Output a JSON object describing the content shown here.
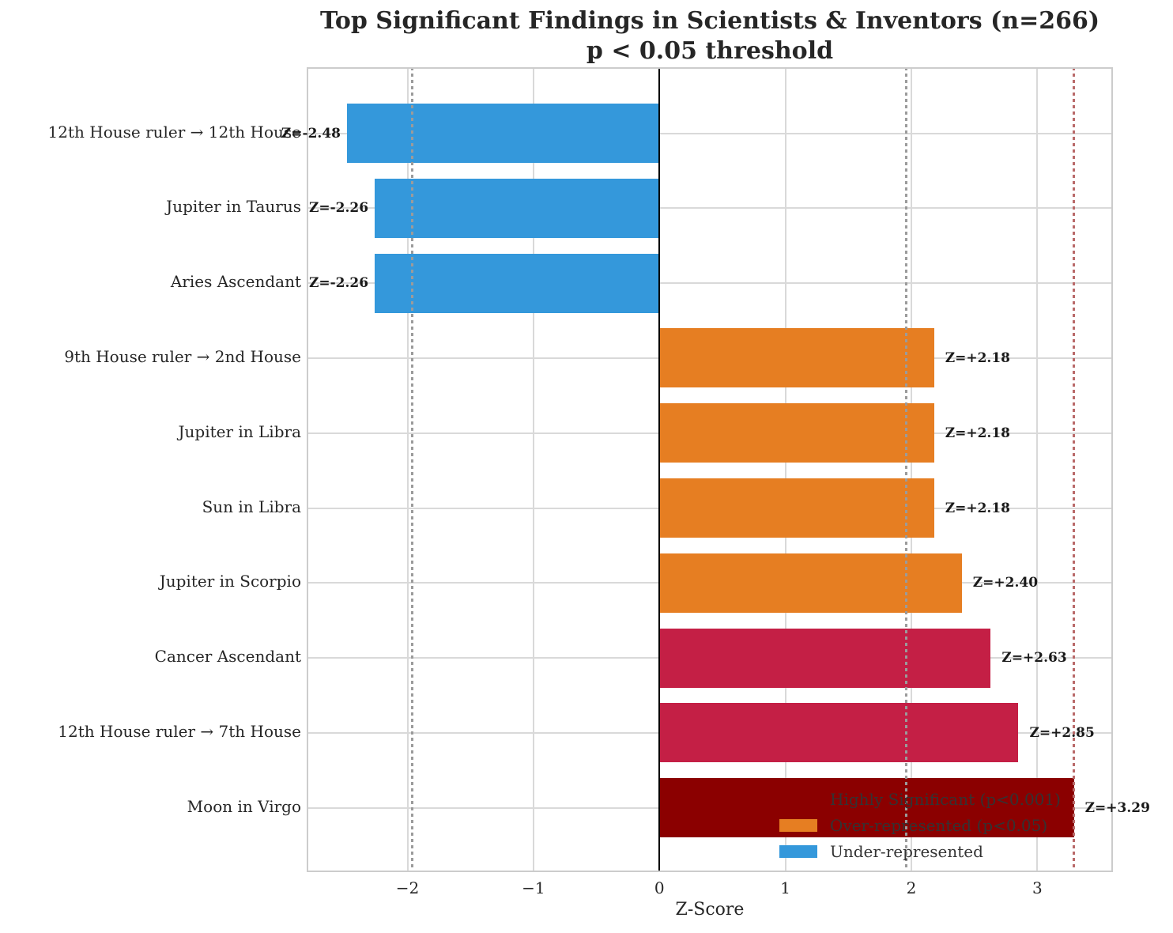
{
  "figure": {
    "title_line1": "Top Significant Findings in Scientists & Inventors (n=266)",
    "title_line2": "p < 0.05 threshold",
    "xlabel": "Z-Score"
  },
  "colors": {
    "under_represented_blue": "#3498db",
    "over_represented_orange": "#e67e22",
    "significant_crimson": "#c41f45",
    "highly_significant_darkred": "#8b0000",
    "gridline": "#d9d9d9",
    "threshold_gray": "#9b9b9b",
    "threshold_red": "#b96a6a",
    "zero_line": "#000000"
  },
  "chart_data": {
    "type": "bar",
    "orientation": "horizontal",
    "title": "Top Significant Findings in Scientists & Inventors (n=266)",
    "subtitle": "p < 0.05 threshold",
    "xlabel": "Z-Score",
    "ylabel": "",
    "xlim": [
      -2.8,
      3.6
    ],
    "grid": true,
    "categories": [
      "12th House ruler → 12th House",
      "Jupiter in Taurus",
      "Aries Ascendant",
      "9th House ruler → 2nd House",
      "Jupiter in Libra",
      "Sun in Libra",
      "Jupiter in Scorpio",
      "Cancer Ascendant",
      "12th House ruler → 7th House",
      "Moon in Virgo"
    ],
    "values": [
      -2.48,
      -2.26,
      -2.26,
      2.18,
      2.18,
      2.18,
      2.4,
      2.63,
      2.85,
      3.29
    ],
    "value_labels": [
      "Z=-2.48",
      "Z=-2.26",
      "Z=-2.26",
      "Z=+2.18",
      "Z=+2.18",
      "Z=+2.18",
      "Z=+2.40",
      "Z=+2.63",
      "Z=+2.85",
      "Z=+3.29"
    ],
    "bar_colors": [
      "#3498db",
      "#3498db",
      "#3498db",
      "#e67e22",
      "#e67e22",
      "#e67e22",
      "#e67e22",
      "#c41f45",
      "#c41f45",
      "#8b0000"
    ],
    "xticks": [
      -2,
      -1,
      0,
      1,
      2,
      3
    ],
    "xtick_labels": [
      "−2",
      "−1",
      "0",
      "1",
      "2",
      "3"
    ],
    "threshold_lines": [
      {
        "value": -1.96,
        "color": "#9b9b9b",
        "style": "dotted"
      },
      {
        "value": 1.96,
        "color": "#9b9b9b",
        "style": "dotted"
      },
      {
        "value": 3.29,
        "color": "#b96a6a",
        "style": "dotted"
      }
    ],
    "zero_line": 0,
    "legend_position": "lower right",
    "legend": [
      {
        "label": "Highly Significant (p<0.001)",
        "color": "#8b0000"
      },
      {
        "label": "Over-represented (p<0.05)",
        "color": "#e67e22"
      },
      {
        "label": "Under-represented",
        "color": "#3498db"
      }
    ]
  }
}
